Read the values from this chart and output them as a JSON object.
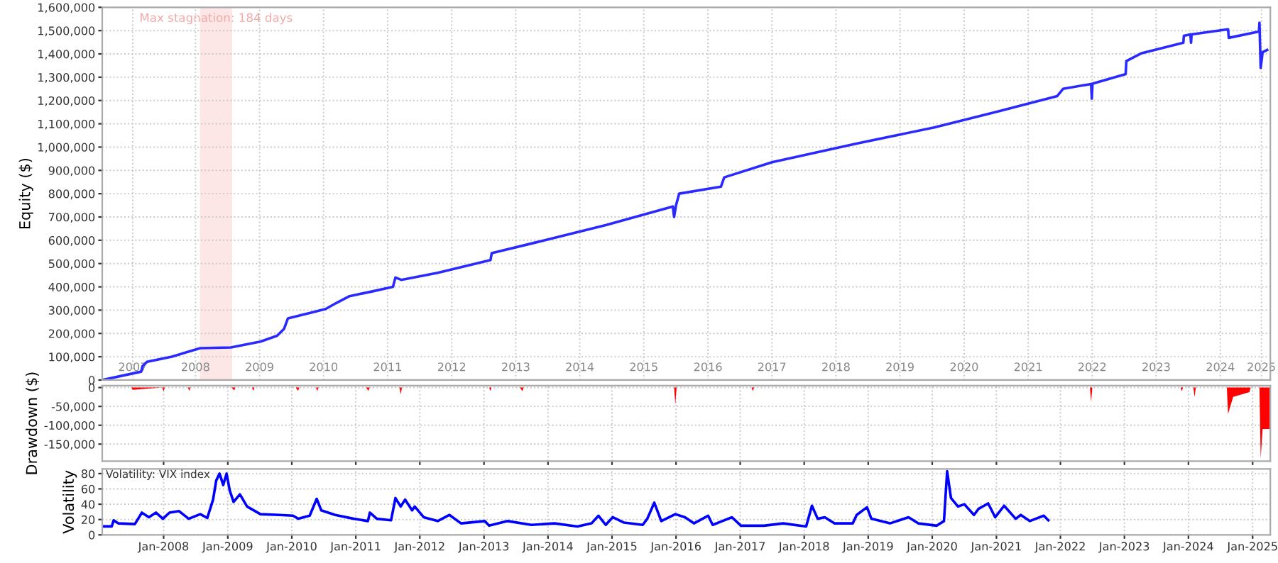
{
  "chart_data": [
    {
      "type": "line",
      "ylabel": "Equity ($)",
      "xlim": [
        "2007-01-16",
        "2025-04-12"
      ],
      "ylim": [
        0,
        1600000
      ],
      "grid": true,
      "xticks": [
        {
          "value": "2007-07-09",
          "label": "2007"
        },
        {
          "value": "2008-07-01",
          "label": "2008"
        },
        {
          "value": "2009-07-01",
          "label": "2009"
        },
        {
          "value": "2010-07-01",
          "label": "2010"
        },
        {
          "value": "2011-07-01",
          "label": "2011"
        },
        {
          "value": "2012-07-01",
          "label": "2012"
        },
        {
          "value": "2013-07-01",
          "label": "2013"
        },
        {
          "value": "2014-07-01",
          "label": "2014"
        },
        {
          "value": "2015-07-01",
          "label": "2015"
        },
        {
          "value": "2016-07-01",
          "label": "2016"
        },
        {
          "value": "2017-07-01",
          "label": "2017"
        },
        {
          "value": "2018-07-01",
          "label": "2018"
        },
        {
          "value": "2019-07-01",
          "label": "2019"
        },
        {
          "value": "2020-07-01",
          "label": "2020"
        },
        {
          "value": "2021-07-01",
          "label": "2021"
        },
        {
          "value": "2022-07-01",
          "label": "2022"
        },
        {
          "value": "2023-07-01",
          "label": "2023"
        },
        {
          "value": "2024-07-01",
          "label": "2024"
        },
        {
          "value": "2025-02-20",
          "label": "2025"
        }
      ],
      "yticks": [
        0,
        {
          "value": 100000,
          "label": "100,000"
        },
        {
          "value": 200000,
          "label": "200,000"
        },
        {
          "value": 300000,
          "label": "300,000"
        },
        {
          "value": 400000,
          "label": "400,000"
        },
        {
          "value": 500000,
          "label": "500,000"
        },
        {
          "value": 600000,
          "label": "600,000"
        },
        {
          "value": 700000,
          "label": "700,000"
        },
        {
          "value": 800000,
          "label": "800,000"
        },
        {
          "value": 900000,
          "label": "900,000"
        },
        {
          "value": 1000000,
          "label": "1,000,000"
        },
        {
          "value": 1100000,
          "label": "1,100,000"
        },
        {
          "value": 1200000,
          "label": "1,200,000"
        },
        {
          "value": 1300000,
          "label": "1,300,000"
        },
        {
          "value": 1400000,
          "label": "1,400,000"
        },
        {
          "value": 1500000,
          "label": "1,500,000"
        },
        {
          "value": 1600000,
          "label": "1,600,000"
        }
      ],
      "bands": [
        {
          "axis": "x",
          "from": "2008-07-26",
          "to": "2009-01-26",
          "label": "Max stagnation: 184 days",
          "color": "#fde6e6"
        }
      ],
      "series": [
        {
          "color": "#2a2aff",
          "x": [
            "2007-01-16",
            "2007-08-26",
            "2007-09-03",
            "2007-09-28",
            "2008-02-17",
            "2008-07-28",
            "2009-01-19",
            "2009-07-06",
            "2009-10-09",
            "2009-11-18",
            "2009-12-10",
            "2010-04-24",
            "2010-07-13",
            "2010-09-10",
            "2010-11-26",
            "2011-04-02",
            "2011-08-01",
            "2011-08-15",
            "2011-09-17",
            "2012-04-12",
            "2013-02-07",
            "2013-02-14",
            "2013-10-20",
            "2014-11-26",
            "2015-12-14",
            "2015-12-21",
            "2016-01-01",
            "2016-01-19",
            "2016-09-13",
            "2016-10-02",
            "2017-07-02",
            "2018-10-31",
            "2020-01-12",
            "2021-01-05",
            "2021-12-14",
            "2022-01-16",
            "2022-06-25",
            "2022-06-29",
            "2022-07-03",
            "2023-01-08",
            "2023-01-12",
            "2023-04-06",
            "2023-12-03",
            "2023-12-06",
            "2024-01-12",
            "2024-01-16",
            "2024-01-19",
            "2024-08-14",
            "2024-08-18",
            "2025-02-06",
            "2025-02-09",
            "2025-02-16",
            "2025-02-27",
            "2025-03-25"
          ],
          "values": [
            0,
            36000,
            60000,
            78000,
            100000,
            137000,
            140000,
            165000,
            190000,
            220000,
            265000,
            290000,
            305000,
            330000,
            360000,
            380000,
            400000,
            440000,
            430000,
            460000,
            515000,
            545000,
            590000,
            665000,
            745000,
            700000,
            750000,
            800000,
            830000,
            870000,
            935000,
            1016000,
            1084000,
            1152000,
            1219000,
            1250000,
            1271000,
            1208000,
            1272000,
            1313000,
            1369000,
            1402000,
            1448000,
            1478000,
            1484000,
            1448000,
            1484000,
            1506000,
            1469000,
            1496000,
            1534000,
            1340000,
            1407000,
            1417000
          ]
        }
      ]
    },
    {
      "type": "area",
      "ylabel": "Drawdown ($)",
      "xlim": [
        "2007-01-16",
        "2025-04-12"
      ],
      "ylim": [
        -195000,
        5000
      ],
      "grid": true,
      "tick_labels": "y",
      "xticks": [
        {
          "value": "2008-01-01",
          "label": null
        },
        {
          "value": "2009-01-01",
          "label": null
        },
        {
          "value": "2010-01-01",
          "label": null
        },
        {
          "value": "2011-01-01",
          "label": null
        },
        {
          "value": "2012-01-01",
          "label": null
        },
        {
          "value": "2013-01-01",
          "label": null
        },
        {
          "value": "2014-01-01",
          "label": null
        },
        {
          "value": "2015-01-01",
          "label": null
        },
        {
          "value": "2016-01-01",
          "label": null
        },
        {
          "value": "2017-01-01",
          "label": null
        },
        {
          "value": "2018-01-01",
          "label": null
        },
        {
          "value": "2019-01-01",
          "label": null
        },
        {
          "value": "2020-01-01",
          "label": null
        },
        {
          "value": "2021-01-01",
          "label": null
        },
        {
          "value": "2022-01-01",
          "label": null
        },
        {
          "value": "2023-01-01",
          "label": null
        },
        {
          "value": "2024-01-01",
          "label": null
        },
        {
          "value": "2025-01-01",
          "label": null
        }
      ],
      "yticks": [
        {
          "value": -150000,
          "label": "-150,000"
        },
        {
          "value": -100000,
          "label": "-100,000"
        },
        {
          "value": -50000,
          "label": "-50,000"
        },
        0
      ],
      "series": [
        {
          "color": "#ff0000",
          "x": [
            "2007-01-16",
            "2007-07-01",
            "2007-07-08",
            "2007-12-24",
            "2008-01-01",
            "2008-01-08",
            "2008-05-19",
            "2008-05-26",
            "2008-06-02",
            "2009-01-23",
            "2009-02-06",
            "2009-02-13",
            "2009-05-19",
            "2009-05-26",
            "2009-06-02",
            "2010-01-23",
            "2010-02-06",
            "2010-02-13",
            "2010-05-19",
            "2010-05-26",
            "2010-06-02",
            "2011-03-01",
            "2011-03-14",
            "2011-03-21",
            "2011-09-07",
            "2011-09-14",
            "2011-09-21",
            "2013-01-30",
            "2013-02-06",
            "2013-02-13",
            "2013-07-25",
            "2013-08-08",
            "2013-08-15",
            "2015-12-21",
            "2015-12-28",
            "2016-01-04",
            "2017-03-07",
            "2017-03-14",
            "2017-03-21",
            "2022-06-18",
            "2022-06-25",
            "2022-07-02",
            "2023-11-17",
            "2023-11-24",
            "2023-12-01",
            "2024-01-29",
            "2024-02-05",
            "2024-02-12",
            "2024-08-07",
            "2024-08-14",
            "2024-09-12",
            "2024-12-14",
            "2024-12-21",
            "2025-02-09",
            "2025-02-16",
            "2025-02-27",
            "2025-04-09"
          ],
          "values": [
            0,
            0,
            -6000,
            0,
            -10000,
            0,
            0,
            -9000,
            0,
            0,
            -8000,
            0,
            0,
            -9000,
            0,
            0,
            -9000,
            0,
            0,
            -10000,
            0,
            0,
            -9000,
            0,
            0,
            -18000,
            0,
            0,
            -9000,
            0,
            0,
            -10000,
            0,
            0,
            -45000,
            0,
            0,
            -10000,
            0,
            0,
            -38000,
            0,
            0,
            -10000,
            0,
            0,
            -25000,
            0,
            0,
            -70000,
            -25000,
            -12000,
            0,
            0,
            -188000,
            -110000,
            -110000
          ]
        }
      ]
    },
    {
      "type": "line",
      "ylabel": "Volatility",
      "xlim": [
        "2007-01-16",
        "2025-04-12"
      ],
      "ylim": [
        0,
        86
      ],
      "grid": true,
      "annotations": [
        "Volatility: VIX index"
      ],
      "xticks": [
        {
          "value": "2008-01-01",
          "label": "Jan-2008"
        },
        {
          "value": "2009-01-01",
          "label": "Jan-2009"
        },
        {
          "value": "2010-01-01",
          "label": "Jan-2010"
        },
        {
          "value": "2011-01-01",
          "label": "Jan-2011"
        },
        {
          "value": "2012-01-01",
          "label": "Jan-2012"
        },
        {
          "value": "2013-01-01",
          "label": "Jan-2013"
        },
        {
          "value": "2014-01-01",
          "label": "Jan-2014"
        },
        {
          "value": "2015-01-01",
          "label": "Jan-2015"
        },
        {
          "value": "2016-01-01",
          "label": "Jan-2016"
        },
        {
          "value": "2017-01-01",
          "label": "Jan-2017"
        },
        {
          "value": "2018-01-01",
          "label": "Jan-2018"
        },
        {
          "value": "2019-01-01",
          "label": "Jan-2019"
        },
        {
          "value": "2020-01-01",
          "label": "Jan-2020"
        },
        {
          "value": "2021-01-01",
          "label": "Jan-2021"
        },
        {
          "value": "2022-01-01",
          "label": "Jan-2022"
        },
        {
          "value": "2023-01-01",
          "label": "Jan-2023"
        },
        {
          "value": "2024-01-01",
          "label": "Jan-2024"
        },
        {
          "value": "2025-01-01",
          "label": "Jan-2025"
        }
      ],
      "yticks": [
        0,
        20,
        40,
        60,
        80
      ],
      "series": [
        {
          "color": "#0000ff",
          "x": [
            "2007-01-16",
            "2007-03-11",
            "2007-03-22",
            "2007-04-17",
            "2007-07-21",
            "2007-08-30",
            "2007-10-09",
            "2007-11-18",
            "2007-12-28",
            "2008-02-03",
            "2008-03-29",
            "2008-05-23",
            "2008-07-28",
            "2008-09-06",
            "2008-10-09",
            "2008-10-27",
            "2008-11-15",
            "2008-12-06",
            "2008-12-25",
            "2009-01-12",
            "2009-02-03",
            "2009-03-11",
            "2009-04-21",
            "2009-07-06",
            "2009-10-24",
            "2010-01-08",
            "2010-02-07",
            "2010-04-13",
            "2010-05-23",
            "2010-06-18",
            "2010-09-06",
            "2010-12-21",
            "2011-03-11",
            "2011-03-22",
            "2011-05-01",
            "2011-07-21",
            "2011-08-15",
            "2011-09-14",
            "2011-10-09",
            "2011-11-18",
            "2011-12-03",
            "2012-01-23",
            "2012-04-12",
            "2012-06-18",
            "2012-08-23",
            "2013-01-05",
            "2013-01-30",
            "2013-05-16",
            "2013-09-28",
            "2014-02-07",
            "2014-06-18",
            "2014-09-06",
            "2014-10-16",
            "2014-11-26",
            "2015-01-05",
            "2015-03-11",
            "2015-06-25",
            "2015-07-21",
            "2015-08-30",
            "2015-10-09",
            "2015-12-28",
            "2016-02-21",
            "2016-04-12",
            "2016-07-02",
            "2016-07-28",
            "2016-11-15",
            "2017-01-05",
            "2017-05-16",
            "2017-09-03",
            "2018-01-12",
            "2018-02-14",
            "2018-03-19",
            "2018-04-28",
            "2018-06-22",
            "2018-10-05",
            "2018-10-27",
            "2018-12-25",
            "2019-01-19",
            "2019-05-05",
            "2019-08-19",
            "2019-10-13",
            "2020-01-27",
            "2020-03-08",
            "2020-03-26",
            "2020-04-17",
            "2020-05-27",
            "2020-07-02",
            "2020-08-26",
            "2020-09-21",
            "2020-11-15",
            "2020-12-25",
            "2021-02-14",
            "2021-04-21",
            "2021-05-20",
            "2021-07-10",
            "2021-09-28",
            "2021-10-24"
          ],
          "values": [
            11,
            11,
            19,
            15,
            14,
            29,
            23,
            29,
            21,
            29,
            31,
            21,
            27,
            22,
            46,
            71,
            80,
            65,
            80,
            58,
            43,
            53,
            37,
            27,
            26,
            25,
            21,
            25,
            47,
            32,
            26,
            21,
            18,
            29,
            21,
            19,
            48,
            37,
            46,
            32,
            37,
            23,
            18,
            26,
            15,
            18,
            12,
            18,
            13,
            15,
            11,
            15,
            25,
            13,
            23,
            16,
            13,
            21,
            42,
            18,
            27,
            23,
            15,
            25,
            13,
            23,
            12,
            12,
            15,
            11,
            38,
            21,
            23,
            15,
            15,
            26,
            36,
            21,
            15,
            23,
            15,
            12,
            18,
            83,
            48,
            37,
            40,
            26,
            34,
            41,
            23,
            38,
            21,
            26,
            18,
            25,
            19
          ]
        }
      ]
    }
  ]
}
